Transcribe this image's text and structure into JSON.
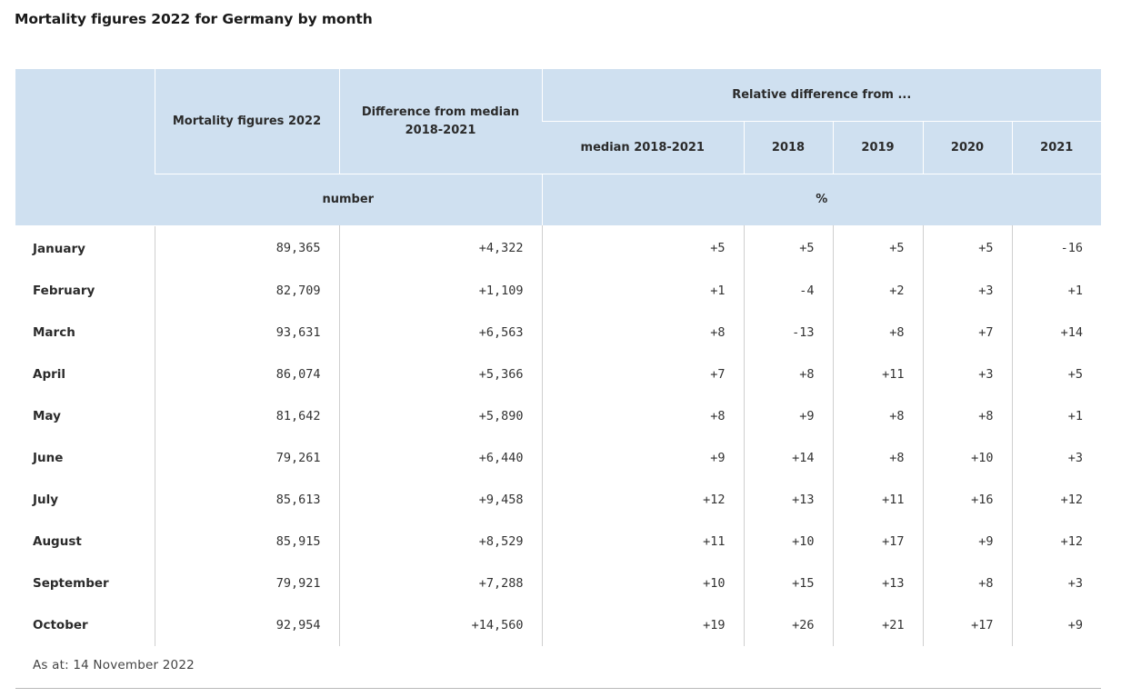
{
  "title": "Mortality figures 2022 for Germany by month",
  "chart_data": {
    "type": "table",
    "title": "Mortality figures 2022 for Germany by month",
    "header": {
      "mortality": "Mortality figures 2022",
      "diff_median": "Difference from median 2018-2021",
      "relative_group": "Relative difference from ...",
      "rel_median": "median 2018-2021",
      "rel_2018": "2018",
      "rel_2019": "2019",
      "rel_2020": "2020",
      "rel_2021": "2021",
      "unit_number": "number",
      "unit_percent": "%"
    },
    "columns": [
      "Mortality figures 2022",
      "Difference from median 2018-2021",
      "median 2018-2021",
      "2018",
      "2019",
      "2020",
      "2021"
    ],
    "rows": [
      {
        "month": "January",
        "values": [
          "89,365",
          "+4,322",
          "+5",
          "+5",
          "+5",
          "+5",
          "-16"
        ]
      },
      {
        "month": "February",
        "values": [
          "82,709",
          "+1,109",
          "+1",
          "-4",
          "+2",
          "+3",
          "+1"
        ]
      },
      {
        "month": "March",
        "values": [
          "93,631",
          "+6,563",
          "+8",
          "-13",
          "+8",
          "+7",
          "+14"
        ]
      },
      {
        "month": "April",
        "values": [
          "86,074",
          "+5,366",
          "+7",
          "+8",
          "+11",
          "+3",
          "+5"
        ]
      },
      {
        "month": "May",
        "values": [
          "81,642",
          "+5,890",
          "+8",
          "+9",
          "+8",
          "+8",
          "+1"
        ]
      },
      {
        "month": "June",
        "values": [
          "79,261",
          "+6,440",
          "+9",
          "+14",
          "+8",
          "+10",
          "+3"
        ]
      },
      {
        "month": "July",
        "values": [
          "85,613",
          "+9,458",
          "+12",
          "+13",
          "+11",
          "+16",
          "+12"
        ]
      },
      {
        "month": "August",
        "values": [
          "85,915",
          "+8,529",
          "+11",
          "+10",
          "+17",
          "+9",
          "+12"
        ]
      },
      {
        "month": "September",
        "values": [
          "79,921",
          "+7,288",
          "+10",
          "+15",
          "+13",
          "+8",
          "+3"
        ]
      },
      {
        "month": "October",
        "values": [
          "92,954",
          "+14,560",
          "+19",
          "+26",
          "+21",
          "+17",
          "+9"
        ]
      }
    ]
  },
  "note": "As at: 14 November 2022",
  "colors": {
    "header_background": "#cfe0f0",
    "grid_lines": "#cfcfcf"
  }
}
